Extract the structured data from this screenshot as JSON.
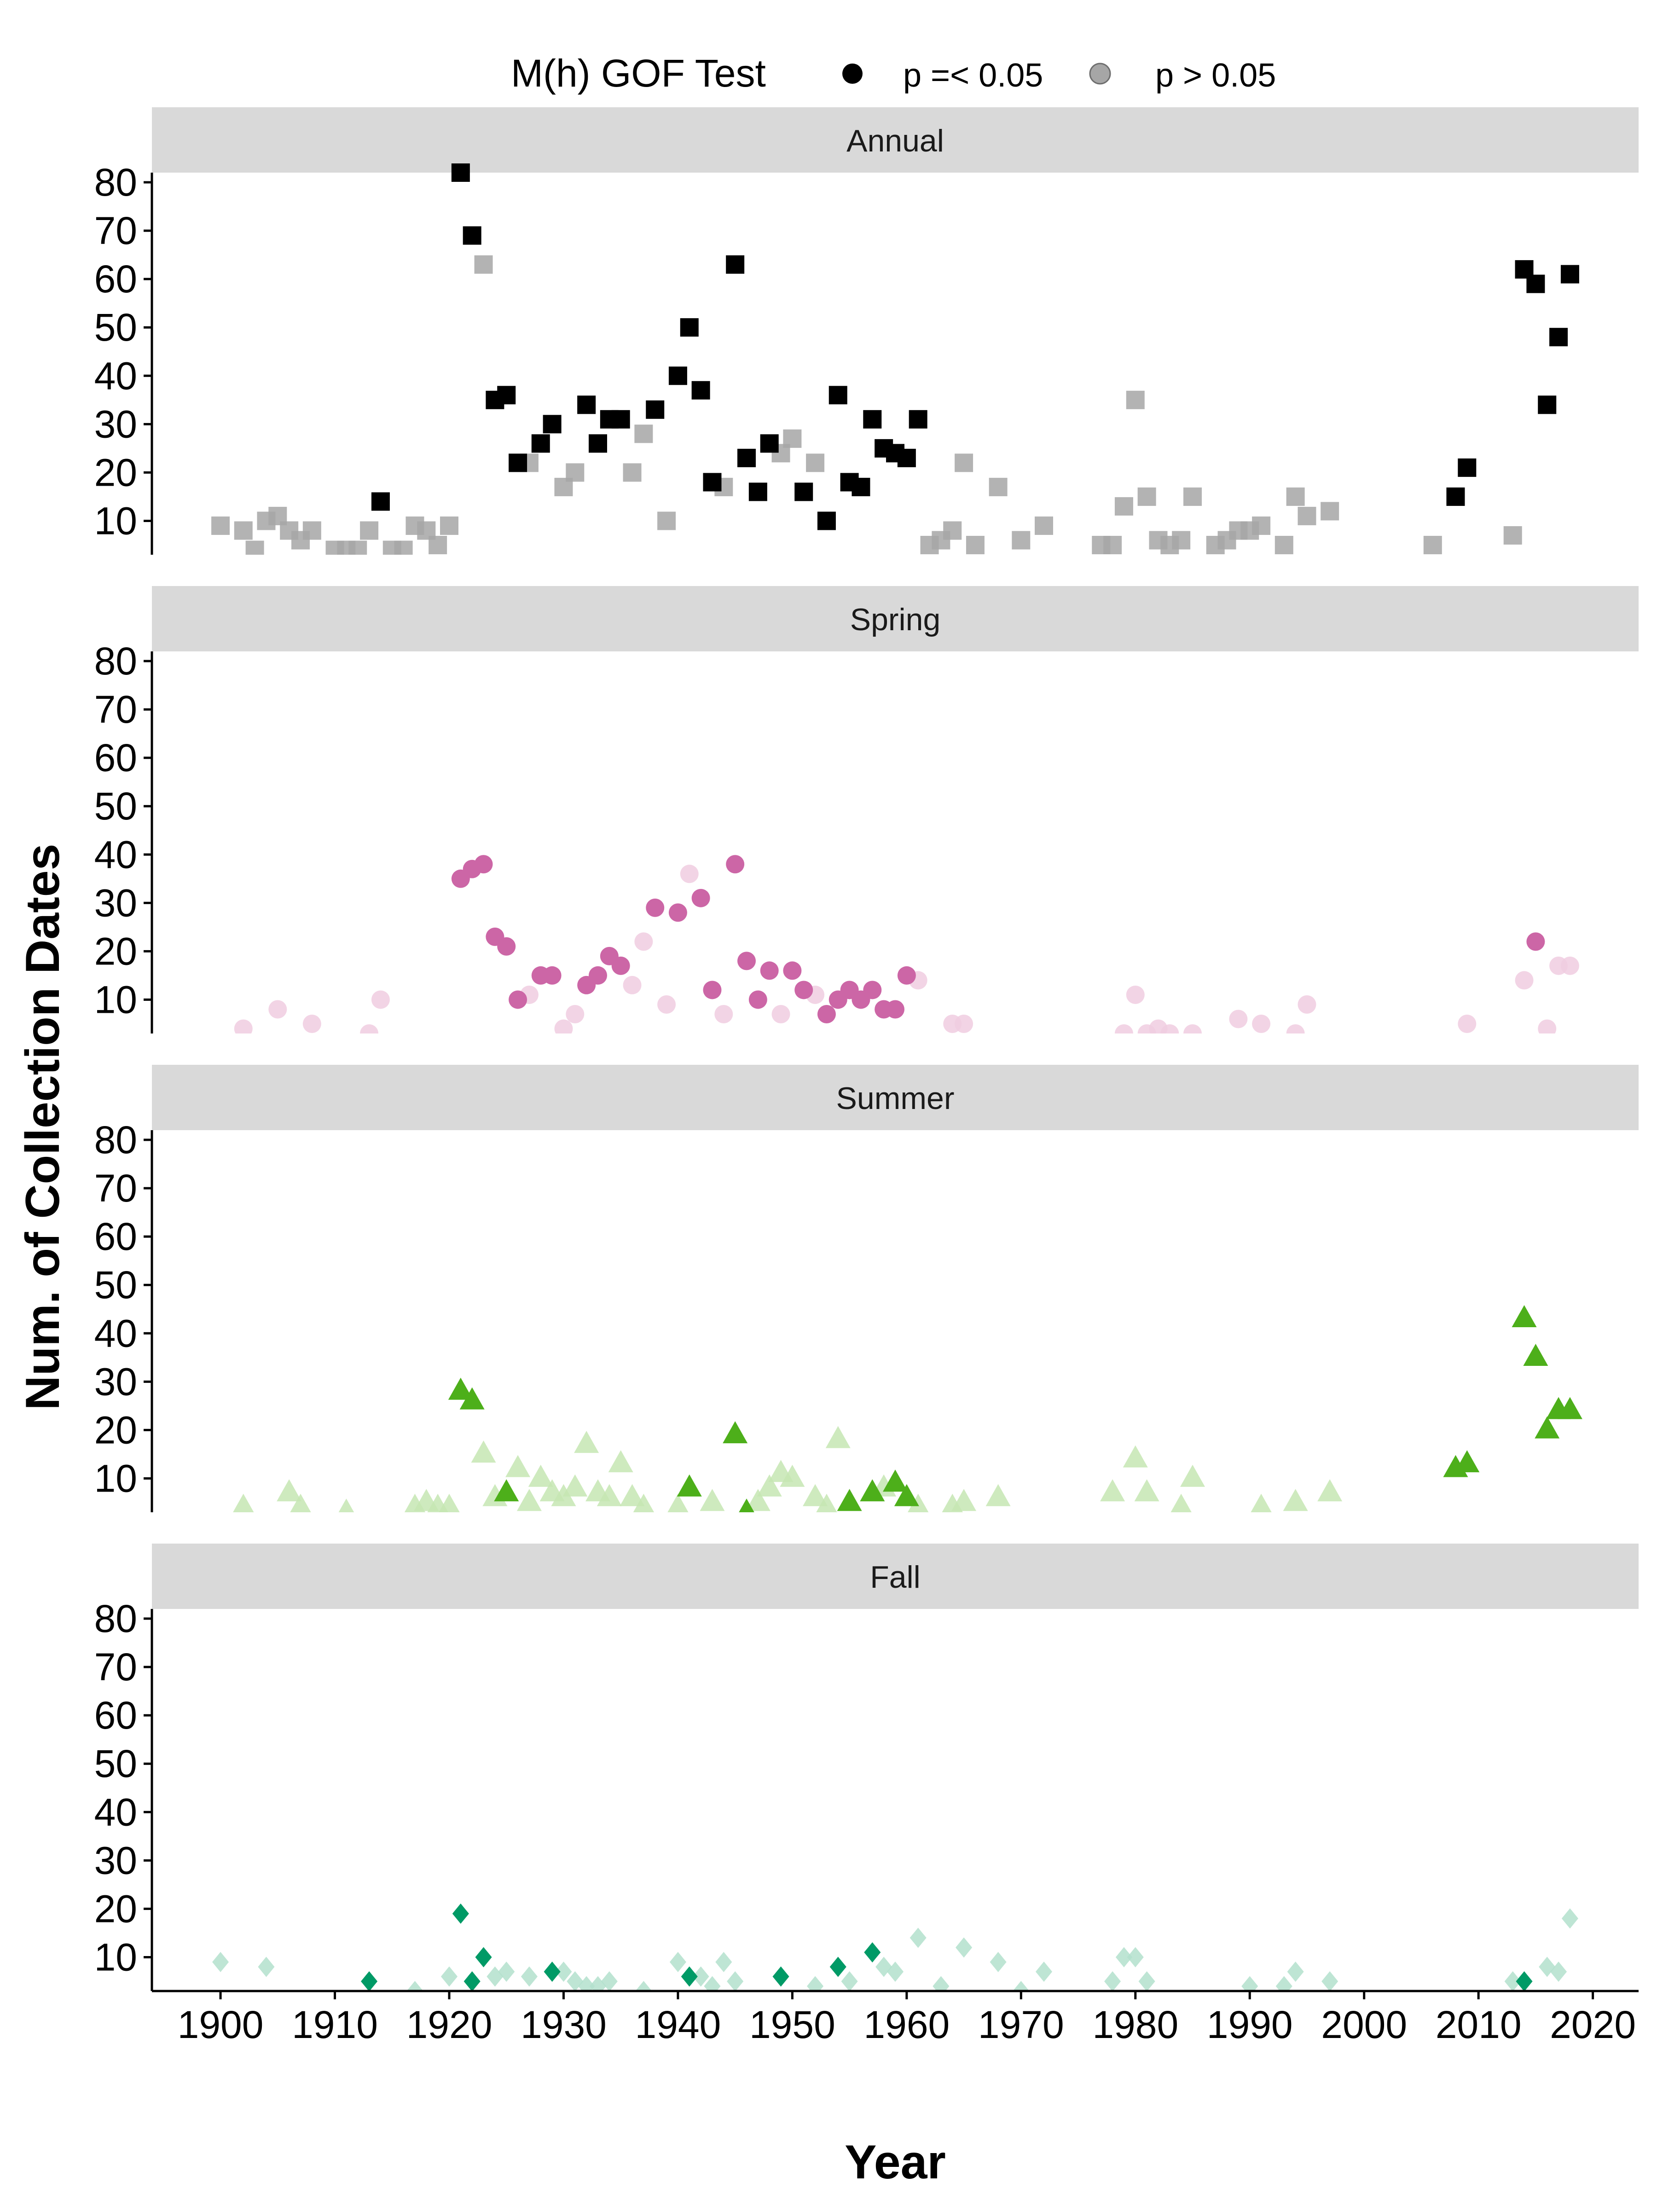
{
  "chart_data": {
    "type": "scatter",
    "ylabel": "Num. of Collection Dates",
    "xlabel": "Year",
    "x_ticks": [
      1900,
      1910,
      1920,
      1930,
      1940,
      1950,
      1960,
      1970,
      1980,
      1990,
      2000,
      2010,
      2020
    ],
    "y_ticks": [
      10,
      20,
      30,
      40,
      50,
      60,
      70,
      80
    ],
    "xlim": [
      1894,
      2024
    ],
    "ylim": [
      3,
      82
    ],
    "legend": {
      "title": "M(h) GOF Test",
      "position": "top",
      "entries": [
        {
          "key": "sig",
          "label": "p =< 0.05"
        },
        {
          "key": "ns",
          "label": "p > 0.05"
        }
      ]
    },
    "panels": [
      {
        "title": "Annual",
        "shape": "square",
        "color": "#000000",
        "ns_color": "#a6a6a6",
        "sig": [
          [
            1914,
            14
          ],
          [
            1921,
            82
          ],
          [
            1922,
            69
          ],
          [
            1924,
            35
          ],
          [
            1925,
            36
          ],
          [
            1926,
            22
          ],
          [
            1928,
            26
          ],
          [
            1929,
            30
          ],
          [
            1932,
            34
          ],
          [
            1933,
            26
          ],
          [
            1934,
            31
          ],
          [
            1935,
            31
          ],
          [
            1938,
            33
          ],
          [
            1940,
            40
          ],
          [
            1941,
            50
          ],
          [
            1942,
            37
          ],
          [
            1943,
            18
          ],
          [
            1945,
            63
          ],
          [
            1946,
            23
          ],
          [
            1947,
            16
          ],
          [
            1948,
            26
          ],
          [
            1951,
            16
          ],
          [
            1953,
            10
          ],
          [
            1954,
            36
          ],
          [
            1955,
            18
          ],
          [
            1956,
            17
          ],
          [
            1957,
            31
          ],
          [
            1958,
            25
          ],
          [
            1959,
            24
          ],
          [
            1960,
            23
          ],
          [
            1961,
            31
          ],
          [
            2008,
            15
          ],
          [
            2009,
            21
          ],
          [
            2014,
            62
          ],
          [
            2015,
            59
          ],
          [
            2016,
            34
          ],
          [
            2017,
            48
          ],
          [
            2018,
            61
          ]
        ],
        "ns": [
          [
            1900,
            9
          ],
          [
            1902,
            8
          ],
          [
            1903,
            4
          ],
          [
            1904,
            10
          ],
          [
            1905,
            11
          ],
          [
            1906,
            8
          ],
          [
            1907,
            6
          ],
          [
            1908,
            8
          ],
          [
            1910,
            4
          ],
          [
            1911,
            4
          ],
          [
            1912,
            4
          ],
          [
            1913,
            8
          ],
          [
            1915,
            4
          ],
          [
            1916,
            4
          ],
          [
            1917,
            9
          ],
          [
            1918,
            8
          ],
          [
            1919,
            5
          ],
          [
            1920,
            9
          ],
          [
            1923,
            63
          ],
          [
            1927,
            22
          ],
          [
            1930,
            17
          ],
          [
            1931,
            20
          ],
          [
            1936,
            20
          ],
          [
            1937,
            28
          ],
          [
            1939,
            10
          ],
          [
            1944,
            17
          ],
          [
            1949,
            24
          ],
          [
            1950,
            27
          ],
          [
            1952,
            22
          ],
          [
            1962,
            5
          ],
          [
            1963,
            6
          ],
          [
            1964,
            8
          ],
          [
            1965,
            22
          ],
          [
            1966,
            5
          ],
          [
            1968,
            17
          ],
          [
            1970,
            6
          ],
          [
            1972,
            9
          ],
          [
            1977,
            5
          ],
          [
            1978,
            5
          ],
          [
            1979,
            13
          ],
          [
            1980,
            35
          ],
          [
            1981,
            15
          ],
          [
            1982,
            6
          ],
          [
            1983,
            5
          ],
          [
            1984,
            6
          ],
          [
            1985,
            15
          ],
          [
            1987,
            5
          ],
          [
            1988,
            6
          ],
          [
            1989,
            8
          ],
          [
            1990,
            8
          ],
          [
            1991,
            9
          ],
          [
            1993,
            5
          ],
          [
            1994,
            15
          ],
          [
            1995,
            11
          ],
          [
            1997,
            12
          ],
          [
            2006,
            5
          ],
          [
            2013,
            7
          ]
        ]
      },
      {
        "title": "Spring",
        "shape": "circle",
        "color": "#cc66a6",
        "ns_color": "#f0cce0",
        "sig": [
          [
            1921,
            35
          ],
          [
            1922,
            37
          ],
          [
            1923,
            38
          ],
          [
            1924,
            23
          ],
          [
            1925,
            21
          ],
          [
            1926,
            10
          ],
          [
            1928,
            15
          ],
          [
            1929,
            15
          ],
          [
            1932,
            13
          ],
          [
            1933,
            15
          ],
          [
            1934,
            19
          ],
          [
            1935,
            17
          ],
          [
            1938,
            29
          ],
          [
            1940,
            28
          ],
          [
            1942,
            31
          ],
          [
            1943,
            12
          ],
          [
            1945,
            38
          ],
          [
            1946,
            18
          ],
          [
            1947,
            10
          ],
          [
            1948,
            16
          ],
          [
            1950,
            16
          ],
          [
            1951,
            12
          ],
          [
            1953,
            7
          ],
          [
            1954,
            10
          ],
          [
            1955,
            12
          ],
          [
            1956,
            10
          ],
          [
            1957,
            12
          ],
          [
            1958,
            8
          ],
          [
            1959,
            8
          ],
          [
            1960,
            15
          ],
          [
            2015,
            22
          ]
        ],
        "ns": [
          [
            1902,
            4
          ],
          [
            1905,
            8
          ],
          [
            1908,
            5
          ],
          [
            1913,
            3
          ],
          [
            1914,
            10
          ],
          [
            1927,
            11
          ],
          [
            1930,
            4
          ],
          [
            1931,
            7
          ],
          [
            1936,
            13
          ],
          [
            1937,
            22
          ],
          [
            1939,
            9
          ],
          [
            1941,
            36
          ],
          [
            1944,
            7
          ],
          [
            1949,
            7
          ],
          [
            1952,
            11
          ],
          [
            1961,
            14
          ],
          [
            1964,
            5
          ],
          [
            1965,
            5
          ],
          [
            1979,
            3
          ],
          [
            1980,
            11
          ],
          [
            1981,
            3
          ],
          [
            1982,
            4
          ],
          [
            1983,
            3
          ],
          [
            1985,
            3
          ],
          [
            1989,
            6
          ],
          [
            1991,
            5
          ],
          [
            1994,
            3
          ],
          [
            1995,
            9
          ],
          [
            2009,
            5
          ],
          [
            2014,
            14
          ],
          [
            2016,
            4
          ],
          [
            2017,
            17
          ],
          [
            2018,
            17
          ]
        ]
      },
      {
        "title": "Summer",
        "shape": "triangle",
        "color": "#4daf1a",
        "ns_color": "#c6e6b3",
        "sig": [
          [
            1921,
            28
          ],
          [
            1922,
            26
          ],
          [
            1925,
            7
          ],
          [
            1941,
            8
          ],
          [
            1945,
            19
          ],
          [
            1946,
            3
          ],
          [
            1955,
            5
          ],
          [
            1957,
            7
          ],
          [
            1959,
            9
          ],
          [
            1960,
            6
          ],
          [
            2008,
            12
          ],
          [
            2009,
            13
          ],
          [
            2014,
            43
          ],
          [
            2015,
            35
          ],
          [
            2016,
            20
          ],
          [
            2017,
            24
          ],
          [
            2018,
            24
          ]
        ],
        "ns": [
          [
            1902,
            4
          ],
          [
            1906,
            7
          ],
          [
            1907,
            4
          ],
          [
            1911,
            3
          ],
          [
            1917,
            4
          ],
          [
            1918,
            5
          ],
          [
            1919,
            4
          ],
          [
            1920,
            4
          ],
          [
            1923,
            15
          ],
          [
            1924,
            6
          ],
          [
            1926,
            12
          ],
          [
            1927,
            5
          ],
          [
            1928,
            10
          ],
          [
            1929,
            7
          ],
          [
            1930,
            6
          ],
          [
            1931,
            8
          ],
          [
            1932,
            17
          ],
          [
            1933,
            7
          ],
          [
            1934,
            6
          ],
          [
            1935,
            13
          ],
          [
            1936,
            6
          ],
          [
            1937,
            4
          ],
          [
            1940,
            4
          ],
          [
            1943,
            5
          ],
          [
            1947,
            5
          ],
          [
            1948,
            8
          ],
          [
            1949,
            11
          ],
          [
            1950,
            10
          ],
          [
            1952,
            6
          ],
          [
            1953,
            4
          ],
          [
            1954,
            18
          ],
          [
            1958,
            8
          ],
          [
            1961,
            4
          ],
          [
            1964,
            4
          ],
          [
            1965,
            5
          ],
          [
            1968,
            6
          ],
          [
            1978,
            7
          ],
          [
            1980,
            14
          ],
          [
            1981,
            7
          ],
          [
            1984,
            4
          ],
          [
            1985,
            10
          ],
          [
            1991,
            4
          ],
          [
            1994,
            5
          ],
          [
            1997,
            7
          ]
        ]
      },
      {
        "title": "Fall",
        "shape": "diamond",
        "color": "#009a66",
        "ns_color": "#b3e0cc",
        "sig": [
          [
            1913,
            5
          ],
          [
            1921,
            19
          ],
          [
            1922,
            5
          ],
          [
            1923,
            10
          ],
          [
            1929,
            7
          ],
          [
            1941,
            6
          ],
          [
            1949,
            6
          ],
          [
            1954,
            8
          ],
          [
            1957,
            11
          ],
          [
            2014,
            5
          ]
        ],
        "ns": [
          [
            1900,
            9
          ],
          [
            1904,
            8
          ],
          [
            1917,
            3
          ],
          [
            1920,
            6
          ],
          [
            1924,
            6
          ],
          [
            1925,
            7
          ],
          [
            1927,
            6
          ],
          [
            1930,
            7
          ],
          [
            1931,
            5
          ],
          [
            1932,
            4
          ],
          [
            1933,
            4
          ],
          [
            1934,
            5
          ],
          [
            1937,
            3
          ],
          [
            1940,
            9
          ],
          [
            1942,
            6
          ],
          [
            1943,
            4
          ],
          [
            1944,
            9
          ],
          [
            1945,
            5
          ],
          [
            1952,
            4
          ],
          [
            1955,
            5
          ],
          [
            1958,
            8
          ],
          [
            1959,
            7
          ],
          [
            1961,
            14
          ],
          [
            1963,
            4
          ],
          [
            1965,
            12
          ],
          [
            1968,
            9
          ],
          [
            1970,
            3
          ],
          [
            1972,
            7
          ],
          [
            1978,
            5
          ],
          [
            1979,
            10
          ],
          [
            1980,
            10
          ],
          [
            1981,
            5
          ],
          [
            1990,
            4
          ],
          [
            1993,
            4
          ],
          [
            1994,
            7
          ],
          [
            1997,
            5
          ],
          [
            2013,
            5
          ],
          [
            2016,
            8
          ],
          [
            2017,
            7
          ],
          [
            2018,
            18
          ]
        ]
      }
    ]
  }
}
